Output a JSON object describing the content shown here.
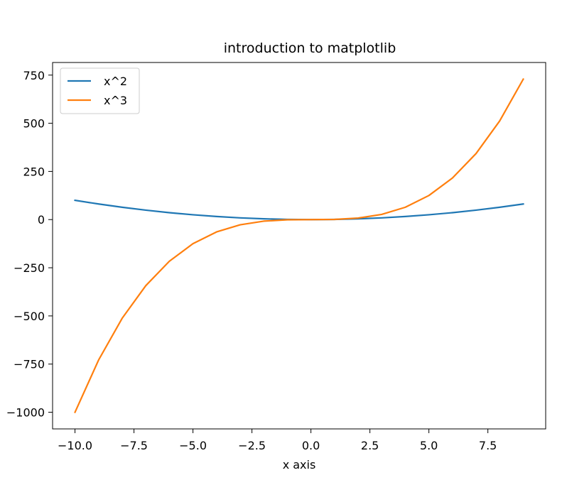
{
  "chart_data": {
    "type": "line",
    "title": "introduction to matplotlib",
    "xlabel": "x axis",
    "ylabel": "",
    "xlim": [
      -10.95,
      9.95
    ],
    "ylim": [
      -1086.45,
      815.45
    ],
    "x_ticks": [
      -10.0,
      -7.5,
      -5.0,
      -2.5,
      0.0,
      2.5,
      5.0,
      7.5
    ],
    "x_tick_labels": [
      "−10.0",
      "−7.5",
      "−5.0",
      "−2.5",
      "0.0",
      "2.5",
      "5.0",
      "7.5"
    ],
    "y_ticks": [
      -1000,
      -750,
      -500,
      -250,
      0,
      250,
      500,
      750
    ],
    "y_tick_labels": [
      "−1000",
      "−750",
      "−500",
      "−250",
      "0",
      "250",
      "500",
      "750"
    ],
    "grid": false,
    "legend_position": "top-left",
    "x": [
      -10,
      -9,
      -8,
      -7,
      -6,
      -5,
      -4,
      -3,
      -2,
      -1,
      0,
      1,
      2,
      3,
      4,
      5,
      6,
      7,
      8,
      9
    ],
    "series": [
      {
        "name": "x^2",
        "color": "#1f77b4",
        "values": [
          100,
          81,
          64,
          49,
          36,
          25,
          16,
          9,
          4,
          1,
          0,
          1,
          4,
          9,
          16,
          25,
          36,
          49,
          64,
          81
        ]
      },
      {
        "name": "x^3",
        "color": "#ff7f0e",
        "values": [
          -1000,
          -729,
          -512,
          -343,
          -216,
          -125,
          -64,
          -27,
          -8,
          -1,
          0,
          1,
          8,
          27,
          64,
          125,
          216,
          343,
          512,
          729
        ]
      }
    ]
  }
}
